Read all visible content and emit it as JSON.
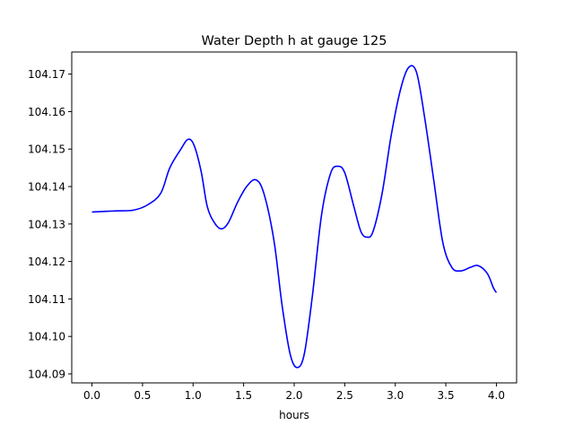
{
  "chart_data": {
    "type": "line",
    "title": "Water Depth h at gauge 125",
    "xlabel": "hours",
    "ylabel": "",
    "xlim": [
      -0.2,
      4.2
    ],
    "ylim": [
      104.0876,
      104.1759
    ],
    "xticks": [
      0.0,
      0.5,
      1.0,
      1.5,
      2.0,
      2.5,
      3.0,
      3.5,
      4.0
    ],
    "xtick_labels": [
      "0.0",
      "0.5",
      "1.0",
      "1.5",
      "2.0",
      "2.5",
      "3.0",
      "3.5",
      "4.0"
    ],
    "yticks": [
      104.09,
      104.1,
      104.11,
      104.12,
      104.13,
      104.14,
      104.15,
      104.16,
      104.17
    ],
    "ytick_labels": [
      "104.09",
      "104.10",
      "104.11",
      "104.12",
      "104.13",
      "104.14",
      "104.15",
      "104.16",
      "104.17"
    ],
    "grid": false,
    "series": [
      {
        "name": "h",
        "color": "#0000ff",
        "x": [
          0,
          0.24,
          0.41,
          0.55,
          0.68,
          0.77,
          0.88,
          0.95,
          1.01,
          1.08,
          1.14,
          1.21,
          1.28,
          1.35,
          1.44,
          1.53,
          1.62,
          1.7,
          1.8,
          1.88,
          1.96,
          2.03,
          2.1,
          2.18,
          2.27,
          2.36,
          2.43,
          2.5,
          2.59,
          2.66,
          2.72,
          2.78,
          2.87,
          2.96,
          3.05,
          3.13,
          3.21,
          3.29,
          3.38,
          3.47,
          3.56,
          3.65,
          3.74,
          3.82,
          3.91,
          3.97,
          4.0
        ],
        "y": [
          104.1332,
          104.1335,
          104.1337,
          104.1351,
          104.1382,
          104.145,
          104.15,
          104.1526,
          104.151,
          104.144,
          104.1347,
          104.1304,
          104.1287,
          104.1304,
          104.1358,
          104.14,
          104.1418,
          104.1382,
          104.1256,
          104.1084,
          104.0953,
          104.0917,
          104.0953,
          104.1108,
          104.1323,
          104.1435,
          104.1454,
          104.1437,
          104.1347,
          104.128,
          104.1265,
          104.128,
          104.1382,
          104.1537,
          104.1657,
          104.1717,
          104.1705,
          104.1585,
          104.1418,
          104.1251,
          104.1184,
          104.1175,
          104.1184,
          104.1189,
          104.1168,
          104.113,
          104.1117
        ]
      }
    ]
  }
}
